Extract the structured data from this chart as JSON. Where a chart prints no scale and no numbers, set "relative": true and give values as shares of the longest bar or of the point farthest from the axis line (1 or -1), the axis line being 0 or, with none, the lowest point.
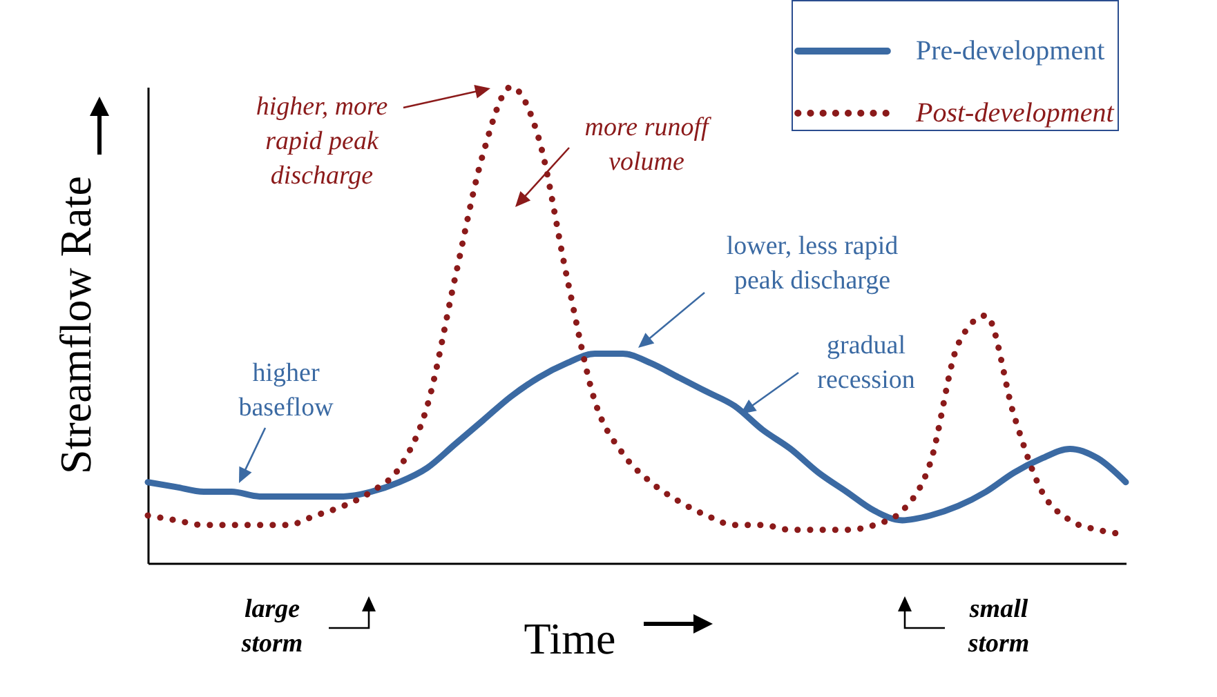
{
  "chart_data": {
    "type": "line",
    "relative": true,
    "xlabel": "Time",
    "ylabel": "Streamflow Rate",
    "categories": [
      null,
      null,
      null,
      null,
      null,
      null,
      null,
      null,
      null,
      null,
      null,
      null,
      null,
      null,
      null,
      null,
      null,
      null,
      null,
      null,
      null,
      null,
      null,
      null,
      null,
      null,
      null,
      null,
      null,
      null,
      null,
      null,
      null,
      null,
      null,
      null
    ],
    "series": [
      {
        "name": "Pre-development",
        "color": "#3b6aa3",
        "line_style": "solid",
        "values": [
          0.17,
          0.16,
          0.15,
          0.15,
          0.14,
          0.14,
          0.14,
          0.14,
          0.15,
          0.17,
          0.2,
          0.25,
          0.3,
          0.35,
          0.39,
          0.42,
          0.44,
          0.44,
          0.42,
          0.39,
          0.36,
          0.33,
          0.28,
          0.24,
          0.19,
          0.15,
          0.11,
          0.09,
          0.1,
          0.12,
          0.15,
          0.19,
          0.22,
          0.24,
          0.22,
          0.17
        ]
      },
      {
        "name": "Post-development",
        "color": "#8b1a1a",
        "line_style": "dotted",
        "values": [
          0.1,
          0.09,
          0.08,
          0.08,
          0.08,
          0.08,
          0.1,
          0.12,
          0.15,
          0.2,
          0.33,
          0.6,
          0.86,
          1,
          0.89,
          0.6,
          0.34,
          0.23,
          0.17,
          0.13,
          0.1,
          0.08,
          0.08,
          0.07,
          0.07,
          0.07,
          0.08,
          0.11,
          0.21,
          0.46,
          0.52,
          0.31,
          0.15,
          0.09,
          0.07,
          0.06
        ]
      }
    ],
    "legend": "top right",
    "grid": false,
    "annotations": [
      "higher, more\nrapid peak\ndischarge",
      "more runoff\nvolume",
      "lower, less rapid\npeak discharge",
      "gradual\nrecession",
      "higher\nbaseflow",
      "large\nstorm",
      "small\nstorm"
    ]
  }
}
